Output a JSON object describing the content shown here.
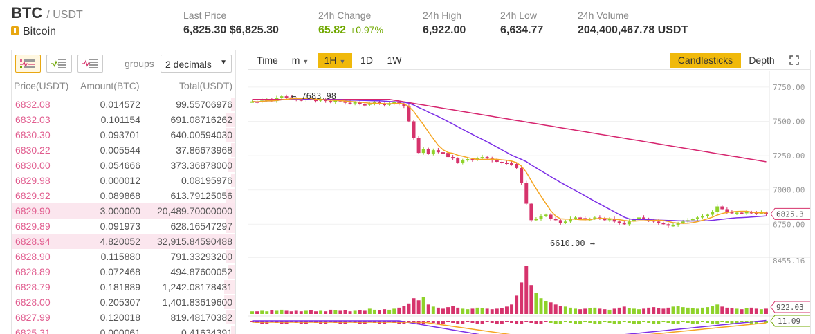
{
  "ticker": {
    "base": "BTC",
    "quote": "/ USDT",
    "name": "Bitcoin",
    "stats": [
      {
        "label": "Last Price",
        "value": "6,825.30 $6,825.30"
      },
      {
        "label": "24h Change",
        "value": "65.82",
        "pct": "+0.97%"
      },
      {
        "label": "24h High",
        "value": "6,922.00"
      },
      {
        "label": "24h Low",
        "value": "6,634.77"
      },
      {
        "label": "24h Volume",
        "value": "204,400,467.78 USDT"
      }
    ]
  },
  "orderbook": {
    "groups_label": "groups",
    "groups_value": "2 decimals",
    "headers": {
      "price": "Price(USDT)",
      "amount": "Amount(BTC)",
      "total": "Total(USDT)"
    },
    "asks": [
      {
        "price": "6832.08",
        "amount": "0.014572",
        "total": "99.55706976",
        "depth": 0.02
      },
      {
        "price": "6832.03",
        "amount": "0.101154",
        "total": "691.08716262",
        "depth": 0.04
      },
      {
        "price": "6830.30",
        "amount": "0.093701",
        "total": "640.00594030",
        "depth": 0.04
      },
      {
        "price": "6830.22",
        "amount": "0.005544",
        "total": "37.86673968",
        "depth": 0.02
      },
      {
        "price": "6830.00",
        "amount": "0.054666",
        "total": "373.36878000",
        "depth": 0.03
      },
      {
        "price": "6829.98",
        "amount": "0.000012",
        "total": "0.08195976",
        "depth": 0.02
      },
      {
        "price": "6829.92",
        "amount": "0.089868",
        "total": "613.79125056",
        "depth": 0.04
      },
      {
        "price": "6829.90",
        "amount": "3.000000",
        "total": "20,489.70000000",
        "depth": 1.0,
        "highlight": true
      },
      {
        "price": "6829.89",
        "amount": "0.091973",
        "total": "628.16547297",
        "depth": 0.04
      },
      {
        "price": "6828.94",
        "amount": "4.820052",
        "total": "32,915.84590488",
        "depth": 1.0,
        "highlight": true
      },
      {
        "price": "6828.90",
        "amount": "0.115880",
        "total": "791.33293200",
        "depth": 0.04
      },
      {
        "price": "6828.89",
        "amount": "0.072468",
        "total": "494.87600052",
        "depth": 0.03
      },
      {
        "price": "6828.79",
        "amount": "0.181889",
        "total": "1,242.08178431",
        "depth": 0.05
      },
      {
        "price": "6828.00",
        "amount": "0.205307",
        "total": "1,401.83619600",
        "depth": 0.05
      },
      {
        "price": "6827.99",
        "amount": "0.120018",
        "total": "819.48170382",
        "depth": 0.04
      },
      {
        "price": "6825.31",
        "amount": "0.000061",
        "total": "0.41634391",
        "depth": 0.02
      }
    ]
  },
  "chart_toolbar": {
    "items": [
      "Time",
      "m",
      "1H",
      "1D",
      "1W"
    ],
    "active": "1H",
    "modes": [
      "Candlesticks",
      "Depth"
    ],
    "active_mode": "Candlesticks"
  },
  "colors": {
    "up": "#8fd22b",
    "down": "#d6336c",
    "ma_fast": "#f5a623",
    "ma_mid": "#7b2ee6",
    "ma_slow": "#d6246e",
    "accent": "#f0b90b"
  },
  "chart_data": {
    "type": "candlestick",
    "interval": "1H",
    "price_axis_ticks": [
      "7750.00",
      "7500.00",
      "7250.00",
      "7000.00",
      "6750.00"
    ],
    "ylim": [
      6550,
      7850
    ],
    "current_price_label": "6825.3",
    "max_marker": "7683.98",
    "min_marker": "6610.00",
    "volume_axis_tick": "8455.16",
    "volume_current_label": "922.03",
    "macd_current_label": "11.09",
    "close": [
      7645,
      7640,
      7652,
      7660,
      7648,
      7670,
      7683,
      7675,
      7668,
      7660,
      7655,
      7665,
      7658,
      7650,
      7660,
      7648,
      7640,
      7655,
      7648,
      7635,
      7630,
      7640,
      7625,
      7620,
      7630,
      7640,
      7628,
      7620,
      7632,
      7640,
      7625,
      7610,
      7500,
      7380,
      7270,
      7300,
      7265,
      7290,
      7275,
      7270,
      7240,
      7230,
      7200,
      7215,
      7225,
      7218,
      7230,
      7240,
      7230,
      7215,
      7205,
      7200,
      7195,
      7190,
      7160,
      7050,
      6900,
      6780,
      6790,
      6810,
      6820,
      6790,
      6780,
      6760,
      6770,
      6790,
      6800,
      6795,
      6785,
      6790,
      6800,
      6795,
      6780,
      6790,
      6770,
      6760,
      6750,
      6770,
      6790,
      6800,
      6790,
      6780,
      6770,
      6760,
      6750,
      6740,
      6745,
      6760,
      6770,
      6780,
      6790,
      6800,
      6810,
      6820,
      6840,
      6880,
      6860,
      6840,
      6830,
      6835,
      6830,
      6840,
      6835,
      6830,
      6835,
      6825
    ],
    "volume": [
      0.05,
      0.05,
      0.06,
      0.05,
      0.07,
      0.06,
      0.08,
      0.06,
      0.05,
      0.06,
      0.05,
      0.06,
      0.07,
      0.05,
      0.06,
      0.05,
      0.08,
      0.07,
      0.06,
      0.07,
      0.05,
      0.06,
      0.07,
      0.06,
      0.1,
      0.08,
      0.07,
      0.09,
      0.08,
      0.1,
      0.12,
      0.15,
      0.2,
      0.3,
      0.26,
      0.32,
      0.18,
      0.14,
      0.12,
      0.1,
      0.13,
      0.15,
      0.12,
      0.1,
      0.09,
      0.1,
      0.12,
      0.11,
      0.1,
      0.09,
      0.1,
      0.11,
      0.14,
      0.18,
      0.35,
      0.6,
      0.92,
      0.55,
      0.4,
      0.3,
      0.25,
      0.22,
      0.18,
      0.15,
      0.14,
      0.12,
      0.1,
      0.09,
      0.1,
      0.11,
      0.12,
      0.1,
      0.09,
      0.08,
      0.1,
      0.12,
      0.14,
      0.11,
      0.1,
      0.09,
      0.1,
      0.12,
      0.13,
      0.11,
      0.1,
      0.12,
      0.14,
      0.15,
      0.13,
      0.12,
      0.11,
      0.1,
      0.12,
      0.13,
      0.15,
      0.18,
      0.14,
      0.12,
      0.11,
      0.1,
      0.09,
      0.11,
      0.12,
      0.1,
      0.09,
      0.1
    ]
  }
}
